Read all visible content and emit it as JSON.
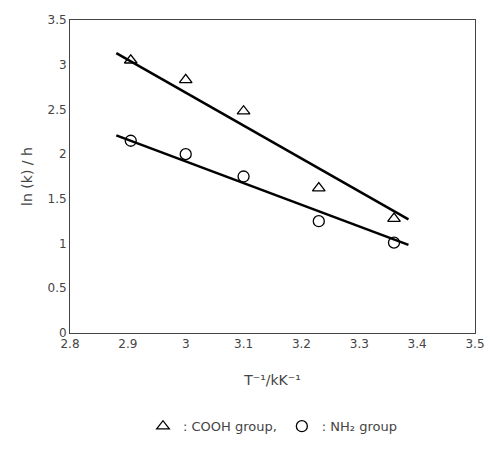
{
  "chart_data": {
    "type": "scatter",
    "xlabel": "T⁻¹/kK⁻¹",
    "ylabel": "ln (k) / h",
    "series": [
      {
        "type": "line",
        "color": "black",
        "line_style": "solid",
        "x": [
          2.88,
          3.385
        ],
        "values": [
          3.13,
          1.27
        ]
      },
      {
        "type": "line",
        "color": "black",
        "line_style": "solid",
        "x": [
          2.88,
          3.385
        ],
        "values": [
          2.21,
          0.985
        ]
      },
      {
        "name": ": COOH group,",
        "type": "scatter",
        "color": "black",
        "marker": "triangle-up-open",
        "x": [
          2.905,
          3.0,
          3.1,
          3.23,
          3.36
        ],
        "values": [
          3.05,
          2.83,
          2.48,
          1.62,
          1.28
        ]
      },
      {
        "name": ": NH₂ group",
        "type": "scatter",
        "color": "black",
        "marker": "circle-open",
        "x": [
          2.905,
          3.0,
          3.1,
          3.23,
          3.36
        ],
        "values": [
          2.15,
          2.0,
          1.75,
          1.25,
          1.01
        ]
      }
    ],
    "xlim": [
      2.8,
      3.5
    ],
    "xticks": [
      2.8,
      2.9,
      3,
      3.1,
      3.2,
      3.3,
      3.4,
      3.5
    ],
    "ylim": [
      0,
      3.5
    ],
    "yticks": [
      0,
      0.5,
      1,
      1.5,
      2,
      2.5,
      3,
      3.5
    ],
    "grid": false,
    "legend": "bottom"
  }
}
